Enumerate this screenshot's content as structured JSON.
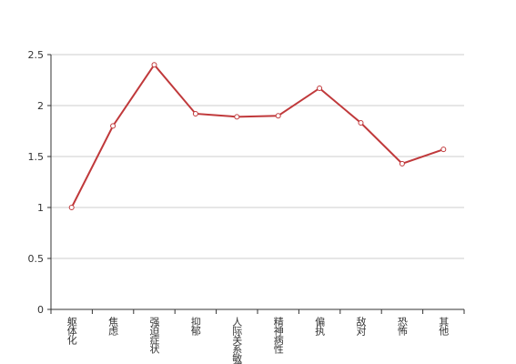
{
  "chart_data": {
    "type": "line",
    "categories": [
      "躯体化",
      "焦虑",
      "强迫症状",
      "抑郁",
      "人际关系敏感",
      "精神病性",
      "偏执",
      "敌对",
      "恐怖",
      "其他"
    ],
    "values": [
      1.0,
      1.8,
      2.4,
      1.92,
      1.89,
      1.9,
      2.17,
      1.83,
      1.43,
      1.57
    ],
    "color": "#c0393b",
    "ylim": [
      0,
      2.5
    ],
    "yticks": [
      0,
      0.5,
      1,
      1.5,
      2,
      2.5
    ],
    "grid": true
  }
}
